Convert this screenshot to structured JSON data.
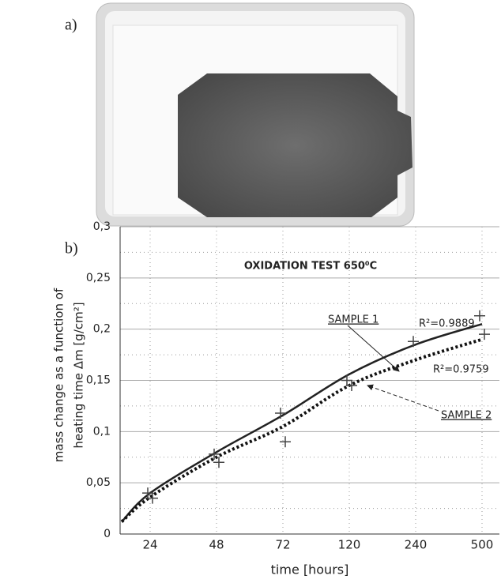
{
  "panel_labels": [
    "a)",
    "b)"
  ],
  "chart_data": {
    "type": "line",
    "title": "OXIDATION TEST 650⁰C",
    "xlabel": "time [hours]",
    "ylabel": [
      "mass change as a function of",
      "heating time Δm [g/cm²]"
    ],
    "categories": [
      null,
      "24",
      "48",
      "72",
      "120",
      "240",
      "500"
    ],
    "series": [
      {
        "name": "SAMPLE 1",
        "color": "#222222",
        "dash": "solid",
        "r2": "R²=0.9889",
        "values": [
          0.01,
          0.04,
          0.078,
          0.118,
          0.15,
          0.188,
          0.213
        ],
        "fit": [
          0.012,
          0.04,
          0.08,
          0.116,
          0.156,
          0.185,
          0.205
        ]
      },
      {
        "name": "SAMPLE 2",
        "color": "#111111",
        "dash": "dotted",
        "r2": "R²=0.9759",
        "values": [
          0.01,
          0.035,
          0.07,
          0.09,
          0.145,
          null,
          0.195
        ],
        "fit": [
          0.012,
          0.036,
          0.075,
          0.105,
          0.145,
          0.17,
          0.19
        ]
      }
    ],
    "ylim": [
      0,
      0.3
    ],
    "yticks": [
      0,
      {
        "value": 0.05,
        "label": "0,05"
      },
      {
        "value": 0.1,
        "label": "0,1"
      },
      {
        "value": 0.15,
        "label": "0,15"
      },
      {
        "value": 0.2,
        "label": "0,2"
      },
      {
        "value": 0.25,
        "label": "0,25"
      },
      {
        "value": 0.3,
        "label": "0,3"
      }
    ],
    "grid": true
  }
}
